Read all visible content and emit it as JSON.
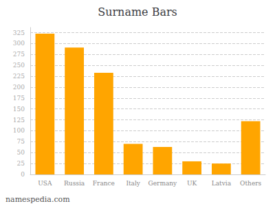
{
  "chart_data": {
    "type": "bar",
    "title": "Surname Bars",
    "categories": [
      "USA",
      "Russia",
      "France",
      "Italy",
      "Germany",
      "UK",
      "Latvia",
      "Others"
    ],
    "values": [
      323,
      291,
      233,
      70,
      63,
      30,
      25,
      122
    ],
    "color": "#FFA500",
    "ylim": [
      0,
      337
    ],
    "yticks": [
      0,
      25,
      50,
      75,
      100,
      125,
      150,
      175,
      200,
      225,
      250,
      275,
      300,
      325
    ],
    "grid": true,
    "annotations": [
      "namespedia.com"
    ]
  }
}
